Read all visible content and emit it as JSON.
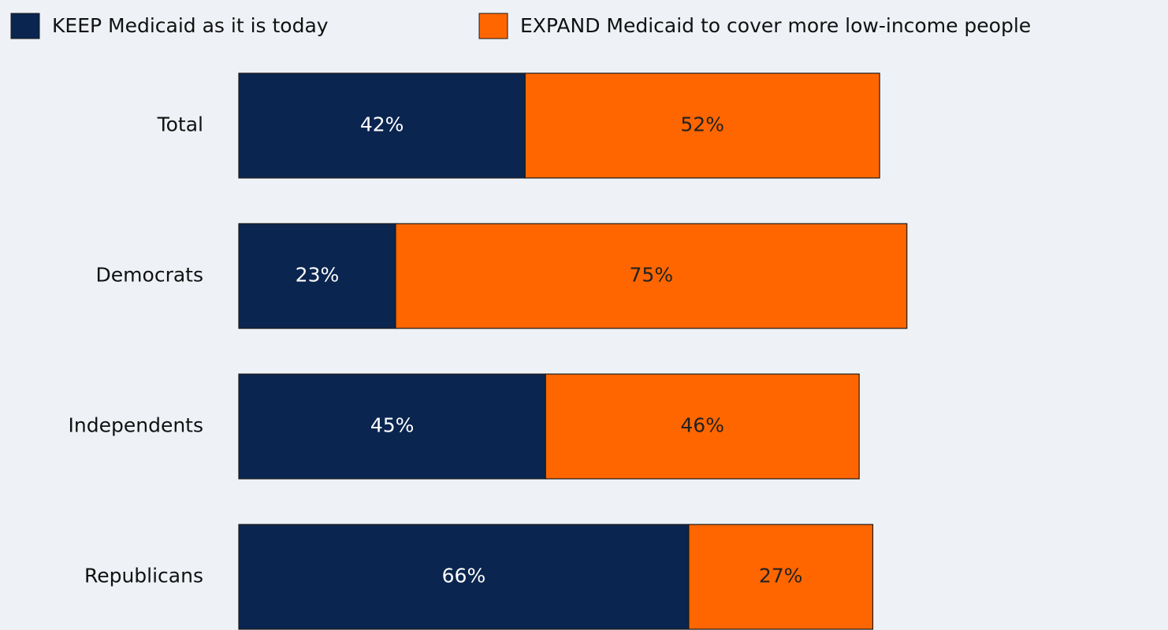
{
  "chart_data": {
    "type": "stacked_bar_horizontal",
    "categories": [
      "Total",
      "Democrats",
      "Independents",
      "Republicans"
    ],
    "series": [
      {
        "name": "KEEP Medicaid as it is today",
        "color": "#0a254f",
        "values": [
          42,
          23,
          45,
          66
        ],
        "value_labels": [
          "42%",
          "23%",
          "45%",
          "66%"
        ]
      },
      {
        "name": "EXPAND Medicaid to cover more low-income people",
        "color": "#ff6600",
        "values": [
          52,
          75,
          46,
          27
        ],
        "value_labels": [
          "52%",
          "75%",
          "46%",
          "27%"
        ]
      }
    ],
    "legend": "top"
  }
}
